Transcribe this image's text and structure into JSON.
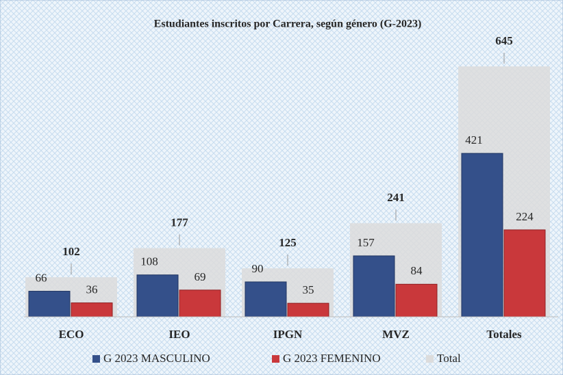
{
  "chart_data": {
    "type": "bar",
    "title": "Estudiantes inscritos por Carrera, según género (G-2023)",
    "categories": [
      "ECO",
      "IEO",
      "IPGN",
      "MVZ",
      "Totales"
    ],
    "series": [
      {
        "name": "G 2023 MASCULINO",
        "color": "#34508a",
        "values": [
          66,
          108,
          90,
          157,
          421
        ]
      },
      {
        "name": "G 2023 FEMENINO",
        "color": "#c9383b",
        "values": [
          36,
          69,
          35,
          84,
          224
        ]
      },
      {
        "name": "Total",
        "color": "#dcdcdc",
        "values": [
          102,
          177,
          125,
          241,
          645
        ]
      }
    ]
  }
}
